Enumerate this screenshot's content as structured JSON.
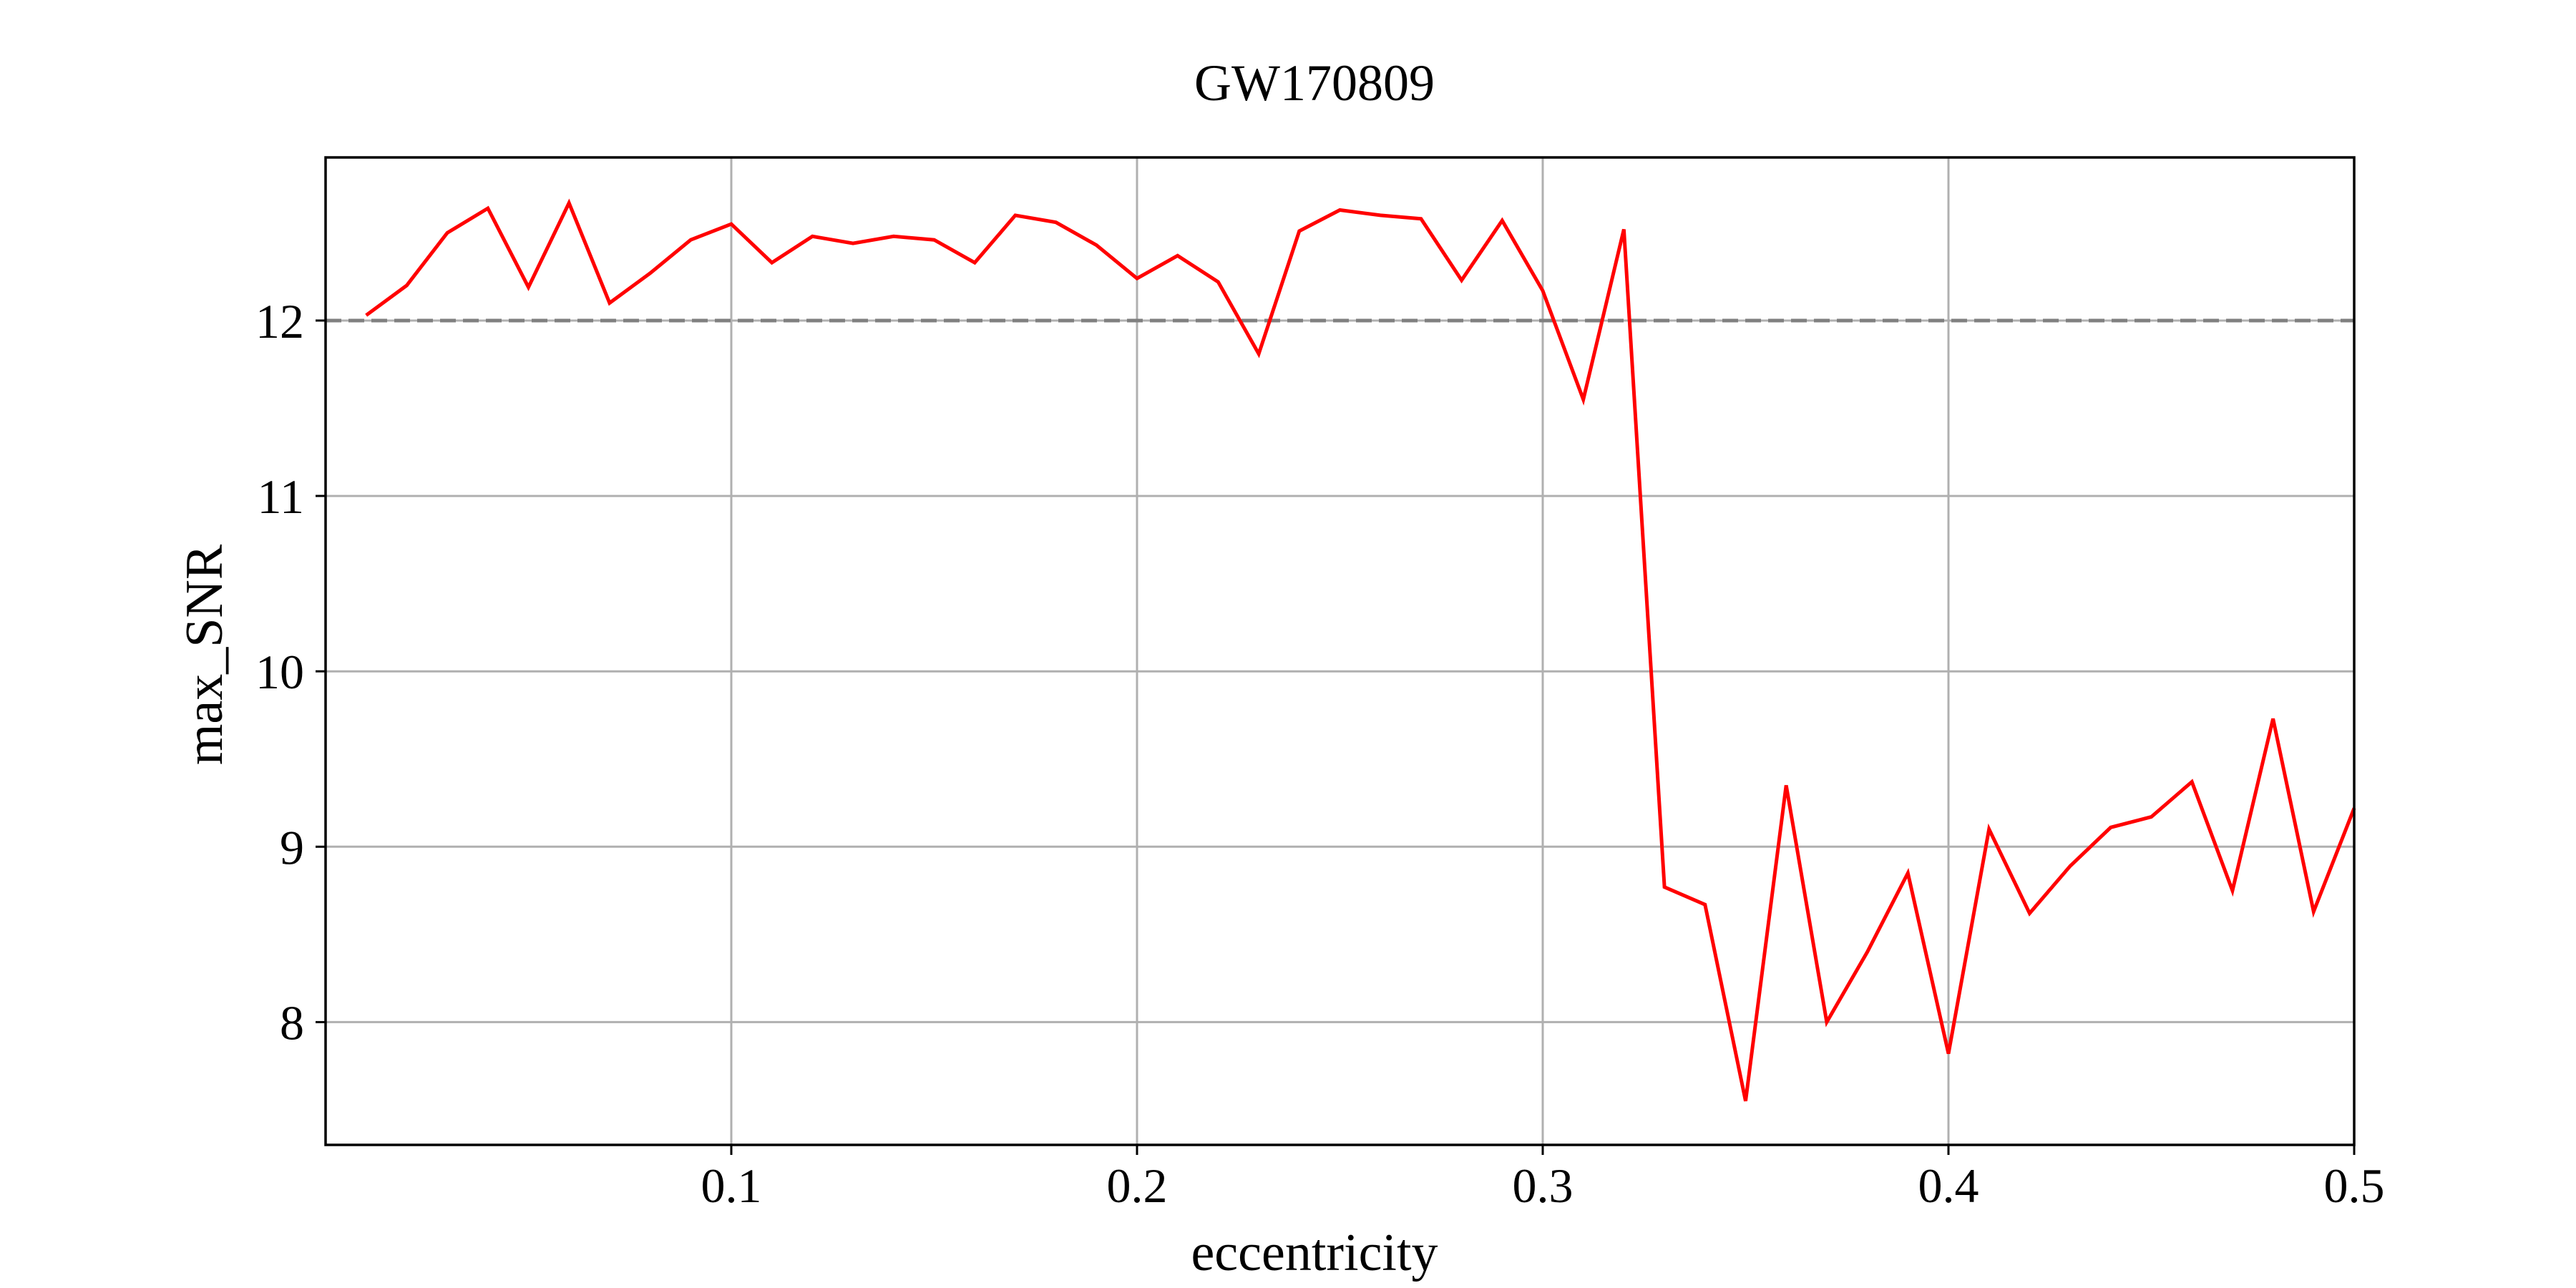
{
  "chart_data": {
    "type": "line",
    "title": "GW170809",
    "xlabel": "eccentricity",
    "ylabel": "max_SNR",
    "xlim": [
      0.0,
      0.5
    ],
    "ylim": [
      7.3,
      12.93
    ],
    "xticks": [
      0.1,
      0.2,
      0.3,
      0.4,
      0.5
    ],
    "xtick_labels": [
      "0.1",
      "0.2",
      "0.3",
      "0.4",
      "0.5"
    ],
    "yticks": [
      8,
      9,
      10,
      11,
      12
    ],
    "ytick_labels": [
      "8",
      "9",
      "10",
      "11",
      "12"
    ],
    "grid": true,
    "series": [
      {
        "color": "#ff0000",
        "x": [
          0.01,
          0.02,
          0.03,
          0.04,
          0.05,
          0.06,
          0.07,
          0.08,
          0.09,
          0.1,
          0.11,
          0.12,
          0.13,
          0.14,
          0.15,
          0.16,
          0.17,
          0.18,
          0.19,
          0.2,
          0.21,
          0.22,
          0.23,
          0.24,
          0.25,
          0.26,
          0.27,
          0.28,
          0.29,
          0.3,
          0.31,
          0.32,
          0.33,
          0.34,
          0.35,
          0.36,
          0.37,
          0.38,
          0.39,
          0.4,
          0.41,
          0.42,
          0.43,
          0.44,
          0.45,
          0.46,
          0.47,
          0.48,
          0.49,
          0.5
        ],
        "y": [
          12.03,
          12.2,
          12.5,
          12.64,
          12.19,
          12.67,
          12.1,
          12.27,
          12.46,
          12.55,
          12.33,
          12.48,
          12.44,
          12.48,
          12.46,
          12.33,
          12.6,
          12.56,
          12.43,
          12.24,
          12.37,
          12.22,
          11.81,
          12.51,
          12.63,
          12.6,
          12.58,
          12.23,
          12.57,
          12.17,
          11.55,
          12.52,
          8.77,
          8.67,
          7.55,
          9.35,
          8.0,
          8.4,
          8.85,
          7.82,
          9.1,
          8.62,
          8.89,
          9.11,
          9.17,
          9.37,
          8.75,
          9.73,
          8.63,
          9.22
        ]
      }
    ],
    "reference_line": {
      "y": 12.0,
      "style": "dashed",
      "color": "#808080"
    }
  }
}
